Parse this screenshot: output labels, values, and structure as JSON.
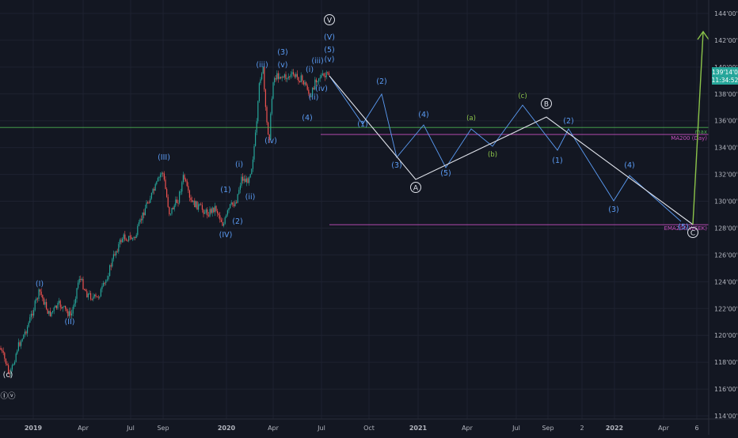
{
  "chart_data": {
    "type": "line",
    "title": "",
    "y_axis_labels": [
      "144'00'0",
      "142'00'0",
      "140'00'0",
      "138'00'0",
      "136'00'0",
      "134'00'0",
      "132'00'0",
      "130'00'0",
      "128'00'0",
      "126'00'0",
      "124'00'0",
      "122'00'0",
      "120'00'0",
      "118'00'0",
      "116'00'0",
      "114'00'0"
    ],
    "x_axis_labels": [
      "2019",
      "Apr",
      "Jul",
      "Sep",
      "2020",
      "Apr",
      "Jul",
      "Oct",
      "2021",
      "Apr",
      "Jul",
      "Sep",
      "2",
      "2022",
      "Apr",
      "6"
    ],
    "x_bold": [
      "2019",
      "2020",
      "2021",
      "2022"
    ],
    "y_range": [
      114,
      144
    ],
    "price_tag": {
      "value": "139'14'0",
      "time": "11:34:52",
      "color": "#26a69a"
    },
    "horizontal_lines": [
      {
        "name": "max",
        "label": "max",
        "value": 135.5,
        "color": "#4caf50"
      },
      {
        "name": "ma200",
        "label": "MA200 (Day)",
        "value": 134.98,
        "color": "#c850c0"
      },
      {
        "name": "ema",
        "label": "EMA200(WEEK)",
        "value": 128.25,
        "color": "#c850c0"
      }
    ],
    "wave_labels": [
      {
        "text": "(c)",
        "color": "white",
        "x": 10,
        "y": 477
      },
      {
        "text": "Ⓘⓥ",
        "color": "white",
        "x": 10,
        "y": 504
      },
      {
        "text": "(I)",
        "color": "blue",
        "x": 50,
        "y": 362
      },
      {
        "text": "(II)",
        "color": "blue",
        "x": 88,
        "y": 410
      },
      {
        "text": "(III)",
        "color": "blue",
        "x": 207,
        "y": 202
      },
      {
        "text": "(IV)",
        "color": "blue",
        "x": 285,
        "y": 300
      },
      {
        "text": "(1)",
        "color": "blue",
        "x": 285,
        "y": 243
      },
      {
        "text": "(2)",
        "color": "blue",
        "x": 300,
        "y": 283
      },
      {
        "text": "(i)",
        "color": "blue",
        "x": 302,
        "y": 211
      },
      {
        "text": "(ii)",
        "color": "blue",
        "x": 316,
        "y": 252
      },
      {
        "text": "(iii)",
        "color": "blue",
        "x": 331,
        "y": 85
      },
      {
        "text": "(iv)",
        "color": "blue",
        "x": 342,
        "y": 181
      },
      {
        "text": "(3)",
        "color": "blue",
        "x": 357,
        "y": 69
      },
      {
        "text": "(v)",
        "color": "blue",
        "x": 357,
        "y": 85
      },
      {
        "text": "(4)",
        "color": "blue",
        "x": 388,
        "y": 152
      },
      {
        "text": "(i)",
        "color": "blue",
        "x": 391,
        "y": 91
      },
      {
        "text": "(ii)",
        "color": "blue",
        "x": 396,
        "y": 126
      },
      {
        "text": "(iii)",
        "color": "blue",
        "x": 401,
        "y": 80
      },
      {
        "text": "(iv)",
        "color": "blue",
        "x": 406,
        "y": 115
      },
      {
        "text": "(v)",
        "color": "blue",
        "x": 416,
        "y": 78
      },
      {
        "text": "(5)",
        "color": "blue",
        "x": 416,
        "y": 66
      },
      {
        "text": "(V)",
        "color": "blue",
        "x": 416,
        "y": 50
      },
      {
        "text": "V",
        "color": "white",
        "x": 416,
        "y": 28,
        "circled": true
      },
      {
        "text": "(1)",
        "color": "blue",
        "x": 458,
        "y": 160
      },
      {
        "text": "(2)",
        "color": "blue",
        "x": 482,
        "y": 106
      },
      {
        "text": "(3)",
        "color": "blue",
        "x": 501,
        "y": 212
      },
      {
        "text": "(4)",
        "color": "blue",
        "x": 535,
        "y": 148
      },
      {
        "text": "(5)",
        "color": "blue",
        "x": 563,
        "y": 222
      },
      {
        "text": "A",
        "color": "white",
        "x": 525,
        "y": 240,
        "circled": true
      },
      {
        "text": "(a)",
        "color": "green",
        "x": 595,
        "y": 152
      },
      {
        "text": "(b)",
        "color": "green",
        "x": 622,
        "y": 198
      },
      {
        "text": "(c)",
        "color": "green",
        "x": 660,
        "y": 124
      },
      {
        "text": "B",
        "color": "white",
        "x": 690,
        "y": 134,
        "circled": true
      },
      {
        "text": "(1)",
        "color": "blue",
        "x": 704,
        "y": 206
      },
      {
        "text": "(2)",
        "color": "blue",
        "x": 718,
        "y": 156
      },
      {
        "text": "(3)",
        "color": "blue",
        "x": 775,
        "y": 268
      },
      {
        "text": "(4)",
        "color": "blue",
        "x": 795,
        "y": 212
      },
      {
        "text": "(5)",
        "color": "blue",
        "x": 863,
        "y": 290
      },
      {
        "text": "C",
        "color": "white",
        "x": 875,
        "y": 297,
        "circled": true
      }
    ],
    "projection_white": [
      [
        416,
        96
      ],
      [
        525,
        227
      ],
      [
        690,
        148
      ],
      [
        875,
        284
      ]
    ],
    "projection_blue": [
      [
        416,
        96
      ],
      [
        458,
        157
      ],
      [
        482,
        119
      ],
      [
        501,
        199
      ],
      [
        535,
        158
      ],
      [
        563,
        212
      ],
      [
        595,
        163
      ],
      [
        622,
        185
      ],
      [
        660,
        133
      ],
      [
        704,
        190
      ],
      [
        718,
        163
      ],
      [
        775,
        254
      ],
      [
        795,
        222
      ],
      [
        860,
        280
      ]
    ],
    "projection_green": [
      [
        875,
        284
      ],
      [
        888,
        40
      ]
    ],
    "colors": {
      "background": "#131722",
      "grid": "#1e2230",
      "candle_up": "#26a69a",
      "candle_down": "#ef5350",
      "blue": "#5b9cf5",
      "green": "#8bc34a",
      "white": "#e0e3eb",
      "axis_text": "#b2b5be",
      "price_tag": "#26a69a"
    }
  }
}
